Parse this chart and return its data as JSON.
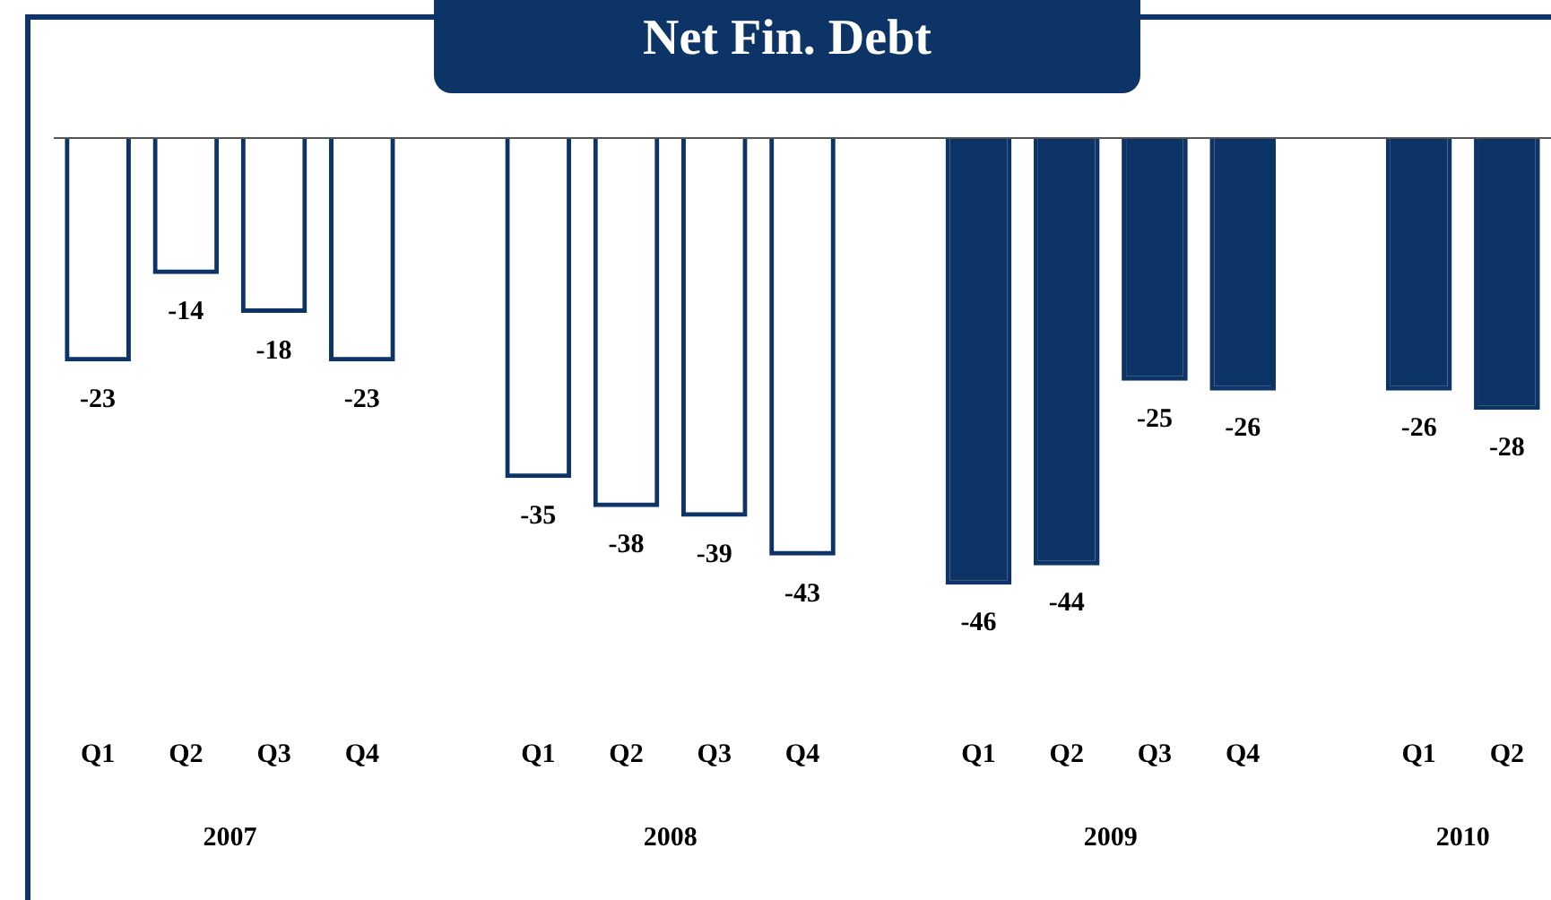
{
  "chart_data": {
    "type": "bar",
    "title": "Net Fin. Debt",
    "categories": [
      "Q1",
      "Q2",
      "Q3",
      "Q4",
      null,
      "Q1",
      "Q2",
      "Q3",
      "Q4",
      null,
      "Q1",
      "Q2",
      "Q3",
      "Q4",
      null,
      "Q1",
      "Q2"
    ],
    "series": [
      {
        "color": "#0d3466",
        "values": [
          -23,
          -14,
          -18,
          -23,
          null,
          -35,
          -38,
          -39,
          -43,
          null,
          null,
          null,
          null,
          null,
          null,
          null,
          null
        ]
      },
      {
        "color": "#0d3466",
        "values": [
          null,
          null,
          null,
          null,
          null,
          null,
          null,
          null,
          null,
          null,
          -46,
          -44,
          -25,
          -26,
          null,
          -26,
          -28
        ]
      }
    ],
    "annotations": [
      "2007",
      "2008",
      "2009",
      "2010"
    ],
    "data_labels": true,
    "tick_labels": "x",
    "grid": false,
    "legend": false
  }
}
